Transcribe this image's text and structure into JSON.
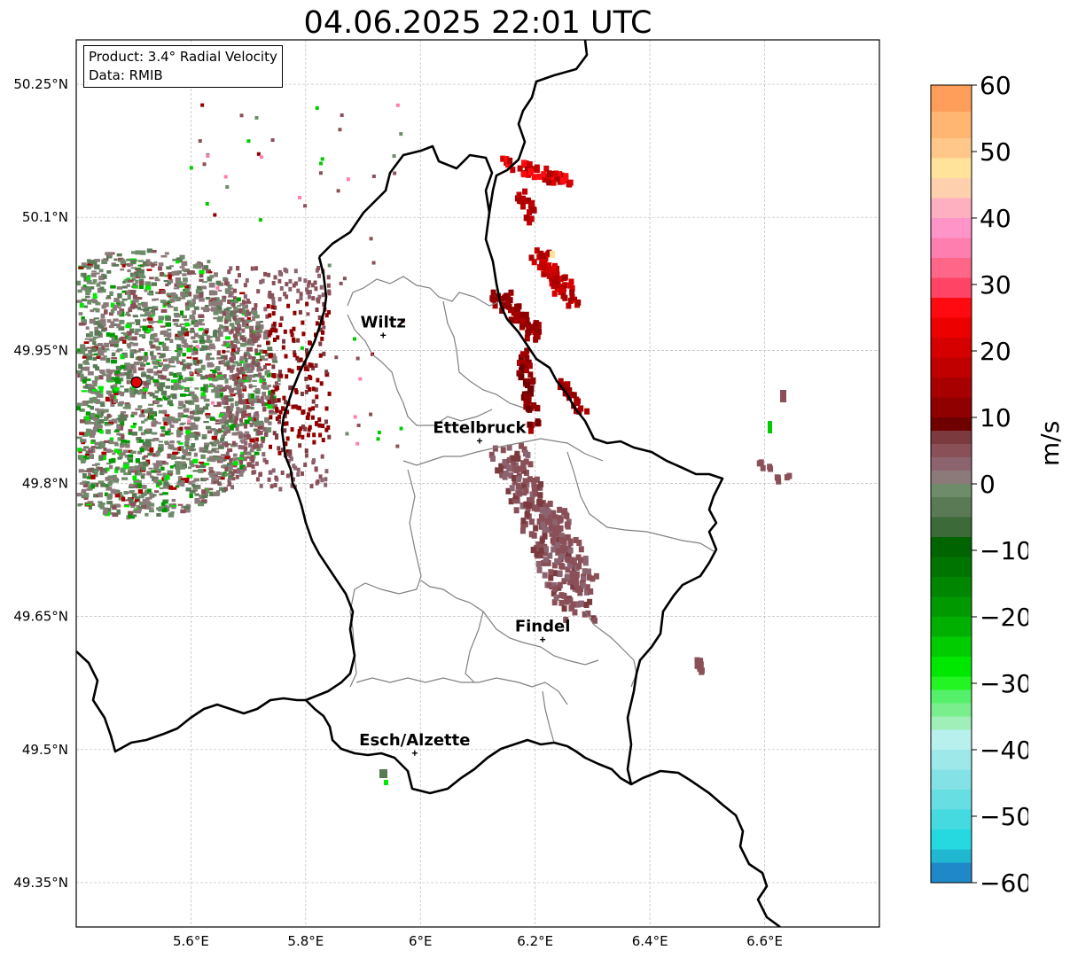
{
  "title": "04.06.2025 22:01 UTC",
  "infobox": {
    "product": "Product: 3.4° Radial Velocity",
    "data_source": "Data: RMIB"
  },
  "map": {
    "lat_ticks": [
      {
        "value": 50.25,
        "label": "50.25°N"
      },
      {
        "value": 50.1,
        "label": "50.1°N"
      },
      {
        "value": 49.95,
        "label": "49.95°N"
      },
      {
        "value": 49.8,
        "label": "49.8°N"
      },
      {
        "value": 49.65,
        "label": "49.65°N"
      },
      {
        "value": 49.5,
        "label": "49.5°N"
      },
      {
        "value": 49.35,
        "label": "49.35°N"
      }
    ],
    "lon_ticks": [
      {
        "value": 5.6,
        "label": "5.6°E"
      },
      {
        "value": 5.8,
        "label": "5.8°E"
      },
      {
        "value": 6.0,
        "label": "6°E"
      },
      {
        "value": 6.2,
        "label": "6.2°E"
      },
      {
        "value": 6.4,
        "label": "6.4°E"
      },
      {
        "value": 6.6,
        "label": "6.6°E"
      }
    ],
    "extent": {
      "lon_min": 5.4,
      "lon_max": 6.8,
      "lat_min": 49.3,
      "lat_max": 50.3
    },
    "gridlines": true,
    "radar_site": {
      "lon": 5.505,
      "lat": 49.914
    },
    "cities": [
      {
        "name": "Wiltz",
        "lon": 5.935,
        "lat": 49.967
      },
      {
        "name": "Ettelbruck",
        "lon": 6.103,
        "lat": 49.848
      },
      {
        "name": "Findel",
        "lon": 6.213,
        "lat": 49.624
      },
      {
        "name": "Esch/Alzette",
        "lon": 5.99,
        "lat": 49.496
      }
    ]
  },
  "colorbar": {
    "unit": "m/s",
    "min": -60,
    "max": 60,
    "ticks": [
      {
        "value": 60,
        "label": "60"
      },
      {
        "value": 50,
        "label": "50"
      },
      {
        "value": 40,
        "label": "40"
      },
      {
        "value": 30,
        "label": "30"
      },
      {
        "value": 20,
        "label": "20"
      },
      {
        "value": 10,
        "label": "10"
      },
      {
        "value": 0,
        "label": "0"
      },
      {
        "value": -10,
        "label": "−10"
      },
      {
        "value": -20,
        "label": "−20"
      },
      {
        "value": -30,
        "label": "−30"
      },
      {
        "value": -40,
        "label": "−40"
      },
      {
        "value": -50,
        "label": "−50"
      },
      {
        "value": -60,
        "label": "−60"
      }
    ],
    "bins": [
      {
        "from": 56,
        "to": 60,
        "color": "#ff9e5a"
      },
      {
        "from": 52,
        "to": 56,
        "color": "#ffb672"
      },
      {
        "from": 49,
        "to": 52,
        "color": "#ffc88a"
      },
      {
        "from": 46,
        "to": 49,
        "color": "#ffe39b"
      },
      {
        "from": 43,
        "to": 46,
        "color": "#ffd0ae"
      },
      {
        "from": 40,
        "to": 43,
        "color": "#ffb0c0"
      },
      {
        "from": 37,
        "to": 40,
        "color": "#ff94c8"
      },
      {
        "from": 34,
        "to": 37,
        "color": "#ff7eb0"
      },
      {
        "from": 31,
        "to": 34,
        "color": "#ff6688"
      },
      {
        "from": 28,
        "to": 31,
        "color": "#ff4466"
      },
      {
        "from": 25,
        "to": 28,
        "color": "#ff0a10"
      },
      {
        "from": 22,
        "to": 25,
        "color": "#ec0000"
      },
      {
        "from": 19,
        "to": 22,
        "color": "#d60000"
      },
      {
        "from": 16,
        "to": 19,
        "color": "#c00000"
      },
      {
        "from": 13,
        "to": 16,
        "color": "#a80000"
      },
      {
        "from": 10,
        "to": 13,
        "color": "#900000"
      },
      {
        "from": 8,
        "to": 10,
        "color": "#6e0000"
      },
      {
        "from": 6,
        "to": 8,
        "color": "#7a3a3e"
      },
      {
        "from": 4,
        "to": 6,
        "color": "#8a5058"
      },
      {
        "from": 2,
        "to": 4,
        "color": "#8c6470"
      },
      {
        "from": 0,
        "to": 2,
        "color": "#8c7a7a"
      },
      {
        "from": -2,
        "to": 0,
        "color": "#6e8c6a"
      },
      {
        "from": -5,
        "to": -2,
        "color": "#5a7a56"
      },
      {
        "from": -8,
        "to": -5,
        "color": "#3c6a38"
      },
      {
        "from": -11,
        "to": -8,
        "color": "#006400"
      },
      {
        "from": -14,
        "to": -11,
        "color": "#007400"
      },
      {
        "from": -17,
        "to": -14,
        "color": "#008600"
      },
      {
        "from": -20,
        "to": -17,
        "color": "#009a00"
      },
      {
        "from": -23,
        "to": -20,
        "color": "#00b000"
      },
      {
        "from": -26,
        "to": -23,
        "color": "#00cc00"
      },
      {
        "from": -29,
        "to": -26,
        "color": "#00e800"
      },
      {
        "from": -31,
        "to": -29,
        "color": "#22f522"
      },
      {
        "from": -33,
        "to": -31,
        "color": "#55f06a"
      },
      {
        "from": -35,
        "to": -33,
        "color": "#7aee8c"
      },
      {
        "from": -37,
        "to": -35,
        "color": "#a0efb8"
      },
      {
        "from": -40,
        "to": -37,
        "color": "#b8f0ee"
      },
      {
        "from": -43,
        "to": -40,
        "color": "#9ee8ea"
      },
      {
        "from": -46,
        "to": -43,
        "color": "#84e2e6"
      },
      {
        "from": -49,
        "to": -46,
        "color": "#66dee2"
      },
      {
        "from": -52,
        "to": -49,
        "color": "#44dadf"
      },
      {
        "from": -55,
        "to": -52,
        "color": "#26d8e0"
      },
      {
        "from": -57,
        "to": -55,
        "color": "#20b8d0"
      },
      {
        "from": -60,
        "to": -57,
        "color": "#1e88c8"
      }
    ]
  },
  "colors": {
    "border": "#000000",
    "canton_lines": "#808080",
    "grid": "#bbbbbb",
    "radar_site": "#e00000"
  }
}
